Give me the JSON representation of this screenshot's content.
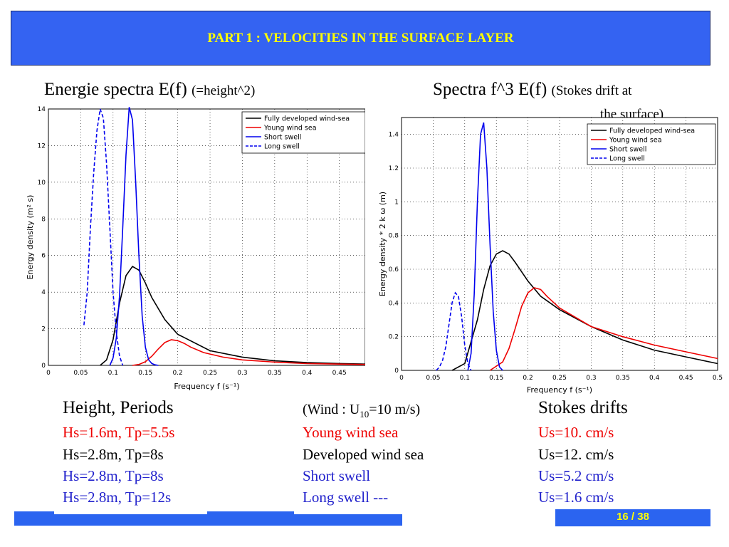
{
  "slide": {
    "title": "PART 1 : VELOCITIES IN THE SURFACE LAYER",
    "page": "16 / 38"
  },
  "left_title": {
    "main": "Energie spectra E(f)",
    "note": "(=height^2)"
  },
  "right_title": {
    "main": "Spectra f^3 E(f)",
    "note": "(Stokes drift at",
    "note2": "the surface)"
  },
  "table": {
    "col1_header": "Height, Periods",
    "col2_header_pre": "(Wind : U",
    "col2_header_sub": "10",
    "col2_header_post": "=10 m/s)",
    "col3_header": "Stokes drifts",
    "rows": [
      {
        "c1": "Hs=1.6m, Tp=5.5s",
        "c2": "Young wind sea",
        "c3": "Us=10. cm/s",
        "color": "#ee0000"
      },
      {
        "c1": "Hs=2.8m, Tp=8s",
        "c2": "Developed wind sea",
        "c3": "Us=12. cm/s",
        "color": "#000000"
      },
      {
        "c1": "Hs=2.8m, Tp=8s",
        "c2": "Short swell",
        "c3": "Us=5.2 cm/s",
        "color": "#2222cc"
      },
      {
        "c1": "Hs=2.8m, Tp=12s",
        "c2": "Long swell ---",
        "c3": "Us=1.6 cm/s",
        "color": "#2222cc"
      }
    ]
  },
  "colors": {
    "header": "#3463f2",
    "title_text": "#ffff00",
    "black": "#000000",
    "red": "#ee0000",
    "blue": "#0000ee"
  },
  "chart_data": [
    {
      "type": "line",
      "title": "",
      "xlabel": "Frequency f (s⁻¹)",
      "ylabel": "Energy density (m² s)",
      "xlim": [
        0,
        0.49
      ],
      "ylim": [
        0,
        14
      ],
      "xticks": [
        "0",
        "0.05",
        "0.1",
        "0.15",
        "0.2",
        "0.25",
        "0.3",
        "0.35",
        "0.4",
        "0.45"
      ],
      "yticks": [
        "0",
        "2",
        "4",
        "6",
        "8",
        "10",
        "12",
        "14"
      ],
      "grid": true,
      "legend_position": "top-right",
      "series": [
        {
          "name": "Fully developed wind-sea",
          "color": "#000000",
          "dash": false,
          "x": [
            0.08,
            0.09,
            0.1,
            0.11,
            0.12,
            0.13,
            0.14,
            0.15,
            0.16,
            0.18,
            0.2,
            0.25,
            0.3,
            0.35,
            0.4,
            0.45,
            0.49
          ],
          "y": [
            0.0,
            0.3,
            1.4,
            3.4,
            4.9,
            5.4,
            5.2,
            4.5,
            3.7,
            2.5,
            1.7,
            0.8,
            0.45,
            0.25,
            0.15,
            0.1,
            0.07
          ]
        },
        {
          "name": "Young wind sea",
          "color": "#ee0000",
          "dash": false,
          "x": [
            0.13,
            0.14,
            0.15,
            0.16,
            0.17,
            0.18,
            0.19,
            0.2,
            0.21,
            0.22,
            0.24,
            0.27,
            0.3,
            0.35,
            0.4,
            0.45,
            0.49
          ],
          "y": [
            0.0,
            0.05,
            0.2,
            0.5,
            0.9,
            1.25,
            1.4,
            1.35,
            1.2,
            1.0,
            0.7,
            0.45,
            0.3,
            0.18,
            0.1,
            0.07,
            0.05
          ]
        },
        {
          "name": "Short swell",
          "color": "#0000ee",
          "dash": false,
          "x": [
            0.095,
            0.1,
            0.105,
            0.11,
            0.115,
            0.12,
            0.125,
            0.13,
            0.135,
            0.14,
            0.145,
            0.15,
            0.155,
            0.16,
            0.165,
            0.17
          ],
          "y": [
            0.0,
            0.4,
            1.5,
            3.8,
            7.5,
            11.5,
            14.1,
            13.4,
            10.0,
            6.0,
            2.7,
            1.0,
            0.3,
            0.1,
            0.03,
            0.0
          ]
        },
        {
          "name": "Long swell",
          "color": "#0000ee",
          "dash": true,
          "x": [
            0.055,
            0.06,
            0.065,
            0.07,
            0.075,
            0.08,
            0.085,
            0.09,
            0.095,
            0.1,
            0.105,
            0.11,
            0.115
          ],
          "y": [
            2.2,
            4.0,
            7.5,
            10.5,
            12.8,
            14.0,
            13.5,
            11.0,
            7.5,
            4.0,
            1.8,
            0.5,
            0.0
          ]
        }
      ]
    },
    {
      "type": "line",
      "title": "",
      "xlabel": "Frequency f (s⁻¹)",
      "ylabel": "Energy density * 2 k ω (m)",
      "xlim": [
        0,
        0.5
      ],
      "ylim": [
        0,
        1.5
      ],
      "xticks": [
        "0",
        "0.05",
        "0.1",
        "0.15",
        "0.2",
        "0.25",
        "0.3",
        "0.35",
        "0.4",
        "0.45",
        "0.5"
      ],
      "yticks": [
        "0",
        "0.2",
        "0.4",
        "0.6",
        "0.8",
        "1",
        "1.2",
        "1.4"
      ],
      "grid": true,
      "legend_position": "top-right",
      "series": [
        {
          "name": "Fully developed wind-sea",
          "color": "#000000",
          "dash": false,
          "x": [
            0.08,
            0.1,
            0.12,
            0.13,
            0.14,
            0.15,
            0.16,
            0.17,
            0.18,
            0.2,
            0.22,
            0.25,
            0.3,
            0.35,
            0.4,
            0.45,
            0.5
          ],
          "y": [
            0.0,
            0.04,
            0.3,
            0.48,
            0.62,
            0.69,
            0.71,
            0.69,
            0.64,
            0.53,
            0.44,
            0.36,
            0.26,
            0.18,
            0.12,
            0.08,
            0.04
          ]
        },
        {
          "name": "Young wind sea",
          "color": "#ee0000",
          "dash": false,
          "x": [
            0.14,
            0.16,
            0.17,
            0.18,
            0.19,
            0.2,
            0.21,
            0.22,
            0.23,
            0.25,
            0.3,
            0.35,
            0.4,
            0.45,
            0.5
          ],
          "y": [
            0.0,
            0.05,
            0.13,
            0.25,
            0.38,
            0.46,
            0.49,
            0.48,
            0.44,
            0.37,
            0.26,
            0.2,
            0.15,
            0.11,
            0.07
          ]
        },
        {
          "name": "Short swell",
          "color": "#0000ee",
          "dash": false,
          "x": [
            0.105,
            0.11,
            0.115,
            0.12,
            0.125,
            0.13,
            0.135,
            0.14,
            0.145,
            0.15,
            0.155,
            0.16
          ],
          "y": [
            0.0,
            0.1,
            0.45,
            1.0,
            1.4,
            1.47,
            1.2,
            0.75,
            0.35,
            0.12,
            0.02,
            0.0
          ]
        },
        {
          "name": "Long swell",
          "color": "#0000ee",
          "dash": true,
          "x": [
            0.055,
            0.06,
            0.065,
            0.07,
            0.075,
            0.08,
            0.085,
            0.09,
            0.095,
            0.1,
            0.105,
            0.11
          ],
          "y": [
            0.0,
            0.02,
            0.06,
            0.14,
            0.27,
            0.4,
            0.46,
            0.44,
            0.32,
            0.15,
            0.04,
            0.0
          ]
        }
      ]
    }
  ]
}
